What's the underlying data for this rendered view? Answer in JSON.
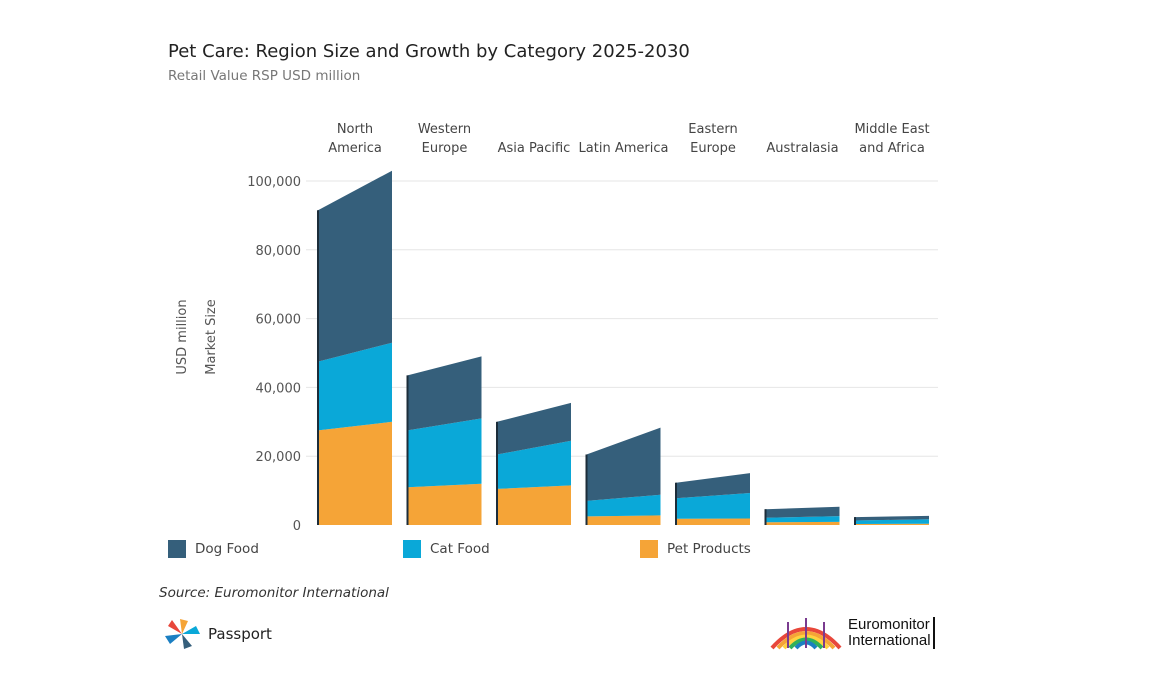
{
  "chart_data": {
    "type": "area",
    "title": "Pet Care: Region Size and Growth by Category 2025-2030",
    "subtitle": "Retail Value RSP USD million",
    "ylabel": "USD million",
    "ylabel2": "Market Size",
    "ylim": [
      0,
      100000
    ],
    "yticks": [
      0,
      20000,
      40000,
      60000,
      80000,
      100000
    ],
    "ytick_labels": [
      "0",
      "20,000",
      "40,000",
      "60,000",
      "80,000",
      "100,000"
    ],
    "regions": [
      {
        "label": [
          "North",
          "America"
        ],
        "pet_products": [
          27500,
          30000
        ],
        "cat_food": [
          20000,
          23000
        ],
        "dog_food": [
          44000,
          50000
        ]
      },
      {
        "label": [
          "Western",
          "Europe"
        ],
        "pet_products": [
          11000,
          12000
        ],
        "cat_food": [
          16500,
          19000
        ],
        "dog_food": [
          16000,
          18000
        ]
      },
      {
        "label": [
          "Asia Pacific"
        ],
        "pet_products": [
          10500,
          11500
        ],
        "cat_food": [
          10000,
          13000
        ],
        "dog_food": [
          9500,
          11000
        ]
      },
      {
        "label": [
          "Latin America"
        ],
        "pet_products": [
          2500,
          2800
        ],
        "cat_food": [
          4500,
          6000
        ],
        "dog_food": [
          13500,
          19500
        ]
      },
      {
        "label": [
          "Eastern",
          "Europe"
        ],
        "pet_products": [
          1800,
          1900
        ],
        "cat_food": [
          6000,
          7400
        ],
        "dog_food": [
          4500,
          5800
        ]
      },
      {
        "label": [
          "Australasia"
        ],
        "pet_products": [
          800,
          900
        ],
        "cat_food": [
          1300,
          1700
        ],
        "dog_food": [
          2500,
          2700
        ]
      },
      {
        "label": [
          "Middle East",
          "and Africa"
        ],
        "pet_products": [
          300,
          350
        ],
        "cat_food": [
          1000,
          1300
        ],
        "dog_food": [
          1000,
          1000
        ]
      }
    ],
    "series": [
      {
        "key": "dog_food",
        "name": "Dog Food",
        "color": "#355f7b"
      },
      {
        "key": "cat_food",
        "name": "Cat Food",
        "color": "#0aa8d8"
      },
      {
        "key": "pet_products",
        "name": "Pet Products",
        "color": "#f5a437"
      }
    ],
    "grid": true,
    "legend_position": "bottom"
  },
  "source": "Source: Euromonitor International",
  "logos": {
    "passport": "Passport",
    "euromonitor_line1": "Euromonitor",
    "euromonitor_line2": "International"
  }
}
